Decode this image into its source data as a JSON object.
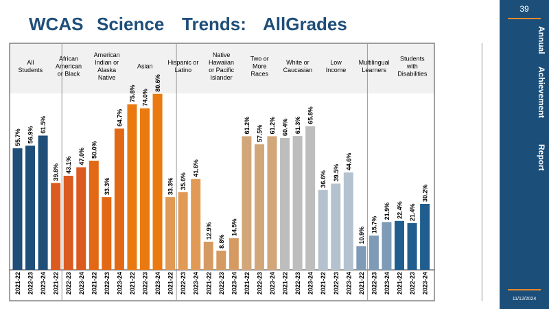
{
  "title": {
    "words": [
      "WCAS",
      "Science",
      "Trends:",
      "AllGrades"
    ],
    "color": "#1F4E79"
  },
  "sidebar": {
    "page_number": "39",
    "words": [
      "Annual",
      "Achievement",
      "Report"
    ],
    "date": "11/12/2024",
    "background": "#1B4F7A",
    "accent": "#E8892E"
  },
  "chart_data": {
    "type": "bar",
    "years": [
      "2021-22",
      "2022-23",
      "2023-24"
    ],
    "ylim": [
      0,
      100
    ],
    "groups": [
      {
        "label": [
          "All",
          "Students"
        ],
        "series": [
          {
            "name": "All Students",
            "values": [
              55.7,
              56.9,
              61.5
            ],
            "color": "#1F4E79"
          }
        ]
      },
      {
        "label": [
          "African",
          "American",
          "or Black"
        ],
        "series": [
          {
            "name": "African American or Black",
            "values": [
              39.8,
              43.1,
              47.0
            ],
            "color": "#DA5A1F"
          }
        ]
      },
      {
        "label": [
          "American",
          "Indian or",
          "Alaska",
          "Native"
        ],
        "series": [
          {
            "name": "American Indian or Alaska Native",
            "values": [
              50.0,
              33.3,
              64.7
            ],
            "color": "#E26815"
          }
        ]
      },
      {
        "label": [
          "Asian"
        ],
        "series": [
          {
            "name": "Asian",
            "values": [
              75.8,
              74.0,
              80.6
            ],
            "color": "#EA7A10"
          }
        ]
      },
      {
        "label": [
          "Hispanic or",
          "Latino"
        ],
        "series": [
          {
            "name": "Hispanic or Latino",
            "values": [
              33.3,
              35.6,
              41.6
            ],
            "color": "#E19A56"
          }
        ]
      },
      {
        "label": [
          "Native",
          "Hawaiian",
          "or Pacific",
          "Islander"
        ],
        "series": [
          {
            "name": "Native Hawaiian or Pacific Islander",
            "values": [
              12.9,
              8.8,
              14.5
            ],
            "color": "#D59A62"
          }
        ]
      },
      {
        "label": [
          "Two or",
          "More",
          "Races"
        ],
        "series": [
          {
            "name": "Two or More Races",
            "values": [
              61.2,
              57.5,
              61.2
            ],
            "color": "#D1A679"
          }
        ]
      },
      {
        "label": [
          "White or",
          "Caucasian"
        ],
        "series": [
          {
            "name": "White or Caucasian",
            "values": [
              60.4,
              61.3,
              65.8
            ],
            "color": "#BDBDBD"
          }
        ]
      },
      {
        "label": [
          "Low",
          "Income"
        ],
        "series": [
          {
            "name": "Low Income",
            "values": [
              36.6,
              39.5,
              44.6
            ],
            "color": "#B4C2CF"
          }
        ]
      },
      {
        "label": [
          "Multilingual",
          "Learners"
        ],
        "series": [
          {
            "name": "Multilingual Learners",
            "values": [
              10.9,
              15.7,
              21.9
            ],
            "color": "#7D9AB6"
          }
        ]
      },
      {
        "label": [
          "Students",
          "with",
          "Disabilities"
        ],
        "series": [
          {
            "name": "Students with Disabilities",
            "values": [
              22.4,
              21.4,
              30.2
            ],
            "color": "#1F5E8E"
          }
        ]
      }
    ]
  }
}
